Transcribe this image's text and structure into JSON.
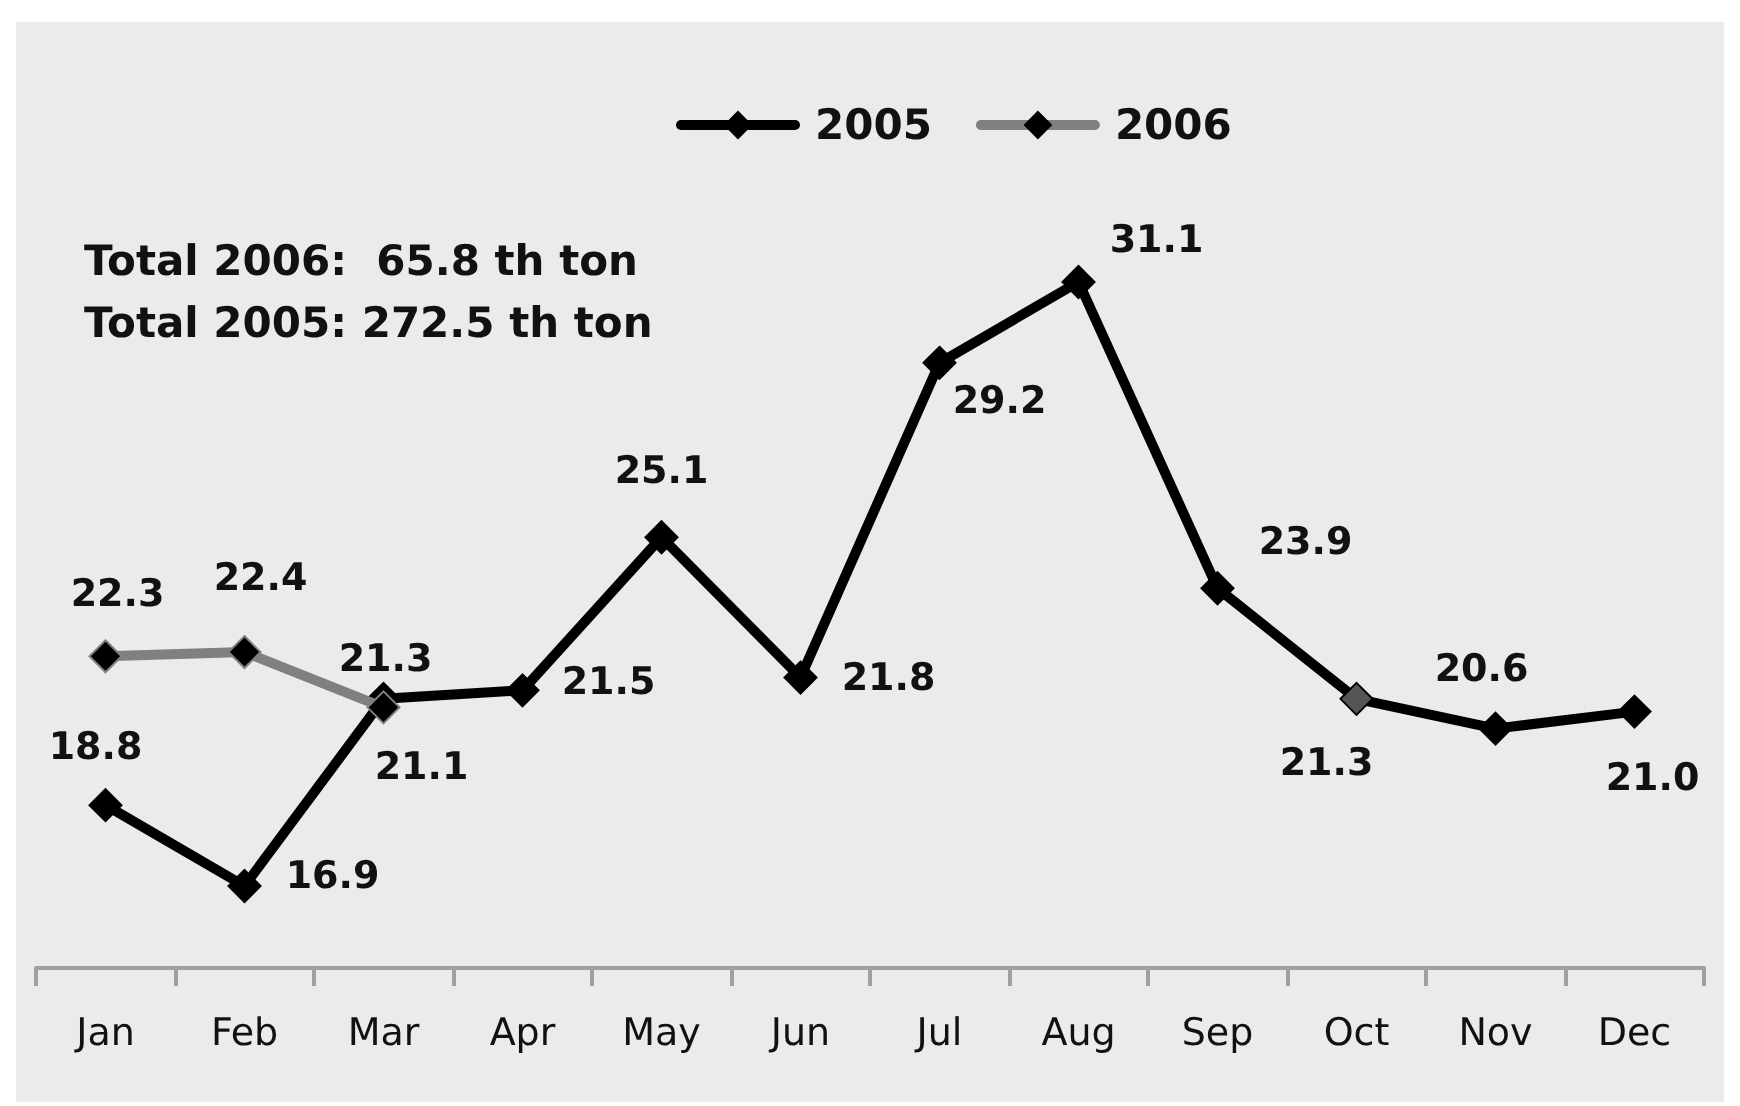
{
  "chart_data": {
    "type": "line",
    "categories": [
      "Jan",
      "Feb",
      "Mar",
      "Apr",
      "May",
      "Jun",
      "Jul",
      "Aug",
      "Sep",
      "Oct",
      "Nov",
      "Dec"
    ],
    "series": [
      {
        "name": "2005",
        "color": "#000000",
        "colors": [
          "#000000",
          "#000000",
          "#000000",
          "#000000",
          "#000000",
          "#000000",
          "#000000",
          "#000000",
          "#000000",
          "#555555",
          "#000000",
          "#000000"
        ],
        "values": [
          18.8,
          16.9,
          21.3,
          21.5,
          25.1,
          21.8,
          29.2,
          31.1,
          23.9,
          21.3,
          20.6,
          21.0
        ],
        "value_labels": [
          "18.8",
          "16.9",
          "21.3",
          "21.5",
          "25.1",
          "21.8",
          "29.2",
          "31.1",
          "23.9",
          "21.3",
          "20.6",
          "21.0"
        ]
      },
      {
        "name": "2006",
        "color": "#808080",
        "colors": [
          "#000000",
          "#000000",
          "#000000",
          null,
          null,
          null,
          null,
          null,
          null,
          null,
          null,
          null
        ],
        "values": [
          22.3,
          22.4,
          21.1,
          null,
          null,
          null,
          null,
          null,
          null,
          null,
          null,
          null
        ],
        "value_labels": [
          "22.3",
          "22.4",
          "21.1",
          null,
          null,
          null,
          null,
          null,
          null,
          null,
          null,
          null
        ]
      }
    ],
    "annotations": [
      "Total 2006:  65.8 th ton",
      "Total 2005: 272.5 th ton"
    ],
    "marker": "diamond",
    "line_style": "solid",
    "legend": "top"
  }
}
